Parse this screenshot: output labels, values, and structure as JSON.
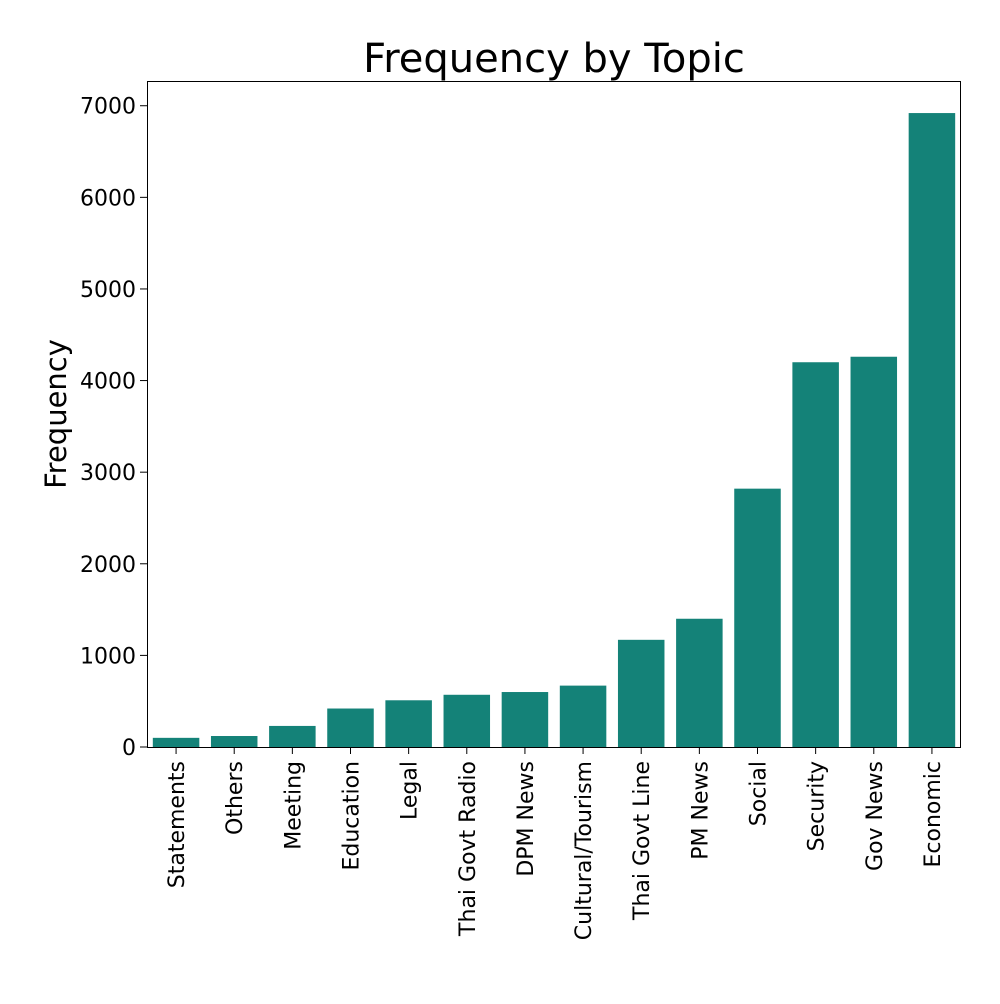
{
  "chart_data": {
    "type": "bar",
    "title": "Frequency by Topic",
    "xlabel": "",
    "ylabel": "Frequency",
    "categories": [
      "Statements",
      "Others",
      "Meeting",
      "Education",
      "Legal",
      "Thai Govt Radio",
      "DPM News",
      "Cultural/Tourism",
      "Thai Govt Line",
      "PM News",
      "Social",
      "Security",
      "Gov News",
      "Economic"
    ],
    "values": [
      100,
      120,
      230,
      420,
      510,
      570,
      600,
      670,
      1170,
      1400,
      2820,
      4200,
      4260,
      6920
    ],
    "ylim": [
      0,
      7270
    ],
    "yticks": [
      0,
      1000,
      2000,
      3000,
      4000,
      5000,
      6000,
      7000
    ],
    "grid": false,
    "legend": "none",
    "bar_color": "#148278"
  }
}
